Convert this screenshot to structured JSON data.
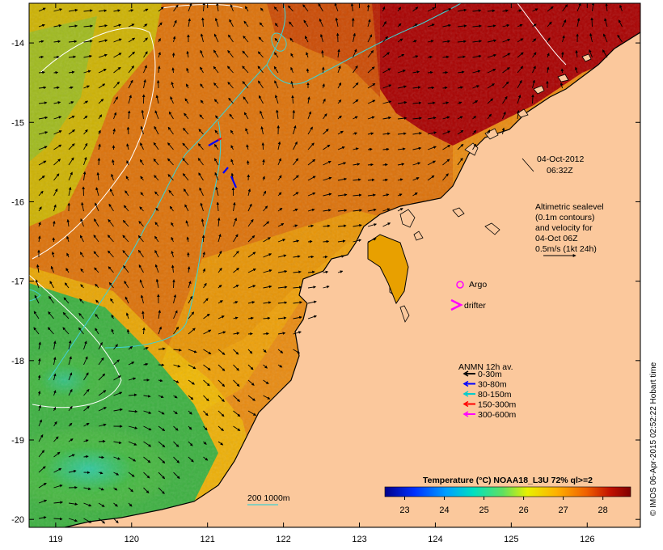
{
  "map": {
    "datetime_line1": "04-Oct-2012",
    "datetime_line2": "06:32Z",
    "altimetry_note": [
      "Altimetric sealevel",
      "(0.1m contours)",
      "and velocity for",
      "04-Oct 06Z",
      "0.5m/s (1kt 24h)"
    ],
    "platforms": {
      "argo_label": "Argo",
      "drifter_label": "drifter"
    },
    "mooring_legend": {
      "title": "ANMN 12h av.",
      "items": [
        {
          "label": "0-30m",
          "color": "#000000"
        },
        {
          "label": "30-80m",
          "color": "#0000ff"
        },
        {
          "label": "80-150m",
          "color": "#00cccc"
        },
        {
          "label": "150-300m",
          "color": "#ff0000"
        },
        {
          "label": "300-600m",
          "color": "#ff00ff"
        }
      ]
    },
    "bathymetry_label": "200  1000m",
    "bathymetry_color": "#40d0d0",
    "colorbar": {
      "title": "Temperature (°C) NOAA18_L3U 72% ql>=2",
      "ticks": [
        23,
        24,
        25,
        26,
        27,
        28
      ],
      "range": [
        22.5,
        28.7
      ]
    },
    "credit": "© IMOS 06-Apr-2015 02:52:22 Hobart time",
    "axes": {
      "x_ticks": [
        119,
        120,
        121,
        122,
        123,
        124,
        125,
        126
      ],
      "y_ticks": [
        -14,
        -15,
        -16,
        -17,
        -18,
        -19,
        -20
      ],
      "x_range": [
        118.65,
        126.7
      ],
      "y_range": [
        -20.1,
        -13.5
      ]
    },
    "colors": {
      "land": "#fbc89c",
      "warm_sst": "#a80000",
      "cool_sst": "#30b050"
    }
  }
}
